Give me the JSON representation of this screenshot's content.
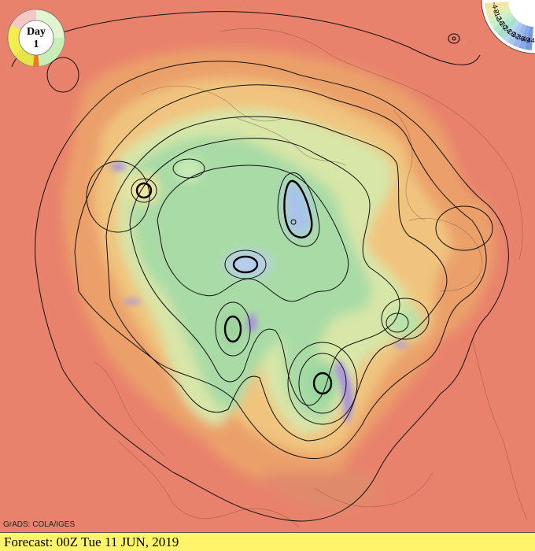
{
  "badge": {
    "line1": "Day",
    "line2": "1"
  },
  "credit": "GrADS: COLA/IGES",
  "footer": {
    "forecast": "Forecast: 00Z Tue 11 JUN, 2019"
  },
  "legend": {
    "labels": [
      "-4",
      "-8",
      "-12",
      "-16",
      "-20",
      "-24",
      "-28",
      "-32",
      "-36",
      "-40",
      "-44"
    ],
    "colors": [
      "#f3e4a0",
      "#e9ecb0",
      "#d8f0c0",
      "#c8eecc",
      "#b6e8c8",
      "#a6e0c8",
      "#b8d8ec",
      "#a8c8ee",
      "#98b8ee",
      "#88a8e8",
      "#7898e0"
    ]
  },
  "colors": {
    "warm": "#e9826c",
    "orange": "#ebac68",
    "yellow": "#f3d98e",
    "lightgreen": "#c6ecb6",
    "green": "#93d69b",
    "blue": "#a7bfea",
    "purple": "#a891de"
  }
}
